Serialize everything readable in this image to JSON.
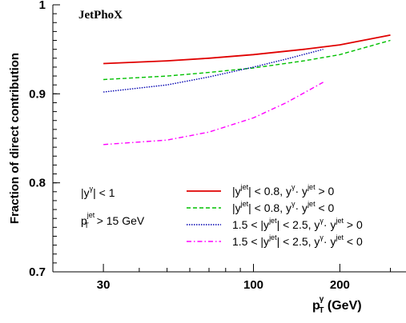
{
  "chart_data": {
    "type": "line",
    "title": "JetPhoX",
    "xlabel_main": "p",
    "xlabel_sub": "T",
    "xlabel_sup": "γ",
    "xlabel_unit": " (GeV)",
    "ylabel": "Fraction of direct contribution",
    "xscale": "log",
    "xlim": [
      20,
      340
    ],
    "ylim": [
      0.7,
      1.0
    ],
    "xticks": [
      {
        "value": 30,
        "label": "30"
      },
      {
        "value": 100,
        "label": "100"
      },
      {
        "value": 200,
        "label": "200"
      }
    ],
    "yticks": [
      {
        "value": 0.7,
        "label": "0.7"
      },
      {
        "value": 0.8,
        "label": "0.8"
      },
      {
        "value": 0.9,
        "label": "0.9"
      },
      {
        "value": 1.0,
        "label": "1"
      }
    ],
    "annotations": {
      "ycut": {
        "pre": "|y",
        "sup": "γ",
        "post": "| < 1"
      },
      "ptcut": {
        "main": "p",
        "sub": "T",
        "sup": "jet",
        "post": " > 15 GeV"
      }
    },
    "series": [
      {
        "name": "|y^jet| < 0.8, y^γ·y^jet > 0",
        "legend": {
          "pre": "|y",
          "sup1": "jet",
          "mid": "| < 0.8,  y",
          "sup2": "γ",
          "dot": "· y",
          "sup3": "jet",
          "post": " > 0"
        },
        "color": "#e00000",
        "dash": "solid",
        "x": [
          30,
          50,
          70,
          100,
          150,
          200,
          300
        ],
        "y": [
          0.934,
          0.937,
          0.94,
          0.944,
          0.95,
          0.955,
          0.966
        ]
      },
      {
        "name": "|y^jet| < 0.8, y^γ·y^jet < 0",
        "legend": {
          "pre": "|y",
          "sup1": "jet",
          "mid": "| < 0.8,  y",
          "sup2": "γ",
          "dot": "· y",
          "sup3": "jet",
          "post": " < 0"
        },
        "color": "#00c000",
        "dash": "dashed",
        "x": [
          30,
          50,
          70,
          100,
          150,
          200,
          300
        ],
        "y": [
          0.916,
          0.92,
          0.924,
          0.929,
          0.937,
          0.944,
          0.96
        ]
      },
      {
        "name": "1.5 < |y^jet| < 2.5, y^γ·y^jet > 0",
        "legend": {
          "pre": "1.5 < |y",
          "sup1": "jet",
          "mid": "| < 2.5,  y",
          "sup2": "γ",
          "dot": "· y",
          "sup3": "jet",
          "post": " > 0"
        },
        "color": "#0000b0",
        "dash": "dotted",
        "x": [
          30,
          50,
          70,
          100,
          130,
          175
        ],
        "y": [
          0.902,
          0.91,
          0.919,
          0.93,
          0.939,
          0.95
        ]
      },
      {
        "name": "1.5 < |y^jet| < 2.5, y^γ·y^jet < 0",
        "legend": {
          "pre": "1.5 < |y",
          "sup1": "jet",
          "mid": "| < 2.5,  y",
          "sup2": "γ",
          "dot": "· y",
          "sup3": "jet",
          "post": " < 0"
        },
        "color": "#ff00ff",
        "dash": "dashdot",
        "x": [
          30,
          50,
          70,
          100,
          130,
          175
        ],
        "y": [
          0.843,
          0.848,
          0.857,
          0.873,
          0.89,
          0.913
        ]
      }
    ]
  }
}
